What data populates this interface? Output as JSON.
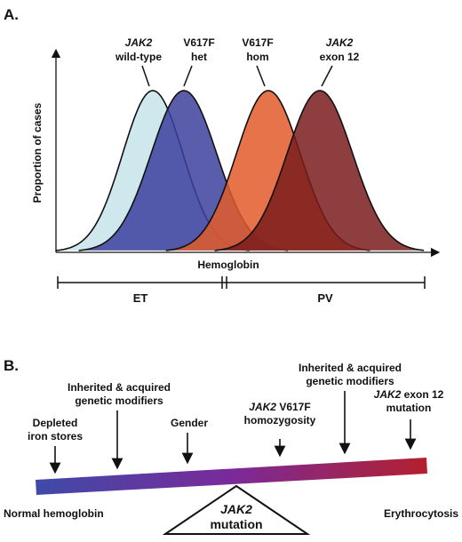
{
  "panel_a": {
    "label": "A.",
    "y_axis_label": "Proportion of cases",
    "x_axis_label": "Hemoglobin",
    "curves": [
      {
        "line1_italic": "JAK2",
        "line1_rest": "",
        "line2": "wild-type",
        "color": "#cfe8ee"
      },
      {
        "line1_italic": "",
        "line1_rest": "V617F",
        "line2": "het",
        "color": "#3d3f9e"
      },
      {
        "line1_italic": "",
        "line1_rest": "V617F",
        "line2": "hom",
        "color": "#e25a2a"
      },
      {
        "line1_italic": "JAK2",
        "line1_rest": "",
        "line2": "exon 12",
        "color": "#7a1c1c"
      }
    ],
    "ranges": [
      {
        "label": "ET"
      },
      {
        "label": "PV"
      }
    ]
  },
  "panel_b": {
    "label": "B.",
    "left_end": "Normal hemoglobin",
    "right_end": "Erythrocytosis",
    "fulcrum_line1": "JAK2",
    "fulcrum_line2": "mutation",
    "factors": [
      {
        "lines": [
          "Depleted",
          "iron stores"
        ]
      },
      {
        "lines": [
          "Inherited & acquired",
          "genetic modifiers"
        ]
      },
      {
        "lines": [
          "Gender"
        ]
      },
      {
        "italic": "JAK2",
        "rest": " V617F",
        "line2": "homozygosity"
      },
      {
        "lines": [
          "Inherited & acquired",
          "genetic modifiers"
        ]
      },
      {
        "italic": "JAK2",
        "rest": " exon 12",
        "line2": "mutation"
      }
    ],
    "gradient_start": "#3f4aa8",
    "gradient_mid": "#7a2a9a",
    "gradient_end": "#b3202e"
  }
}
